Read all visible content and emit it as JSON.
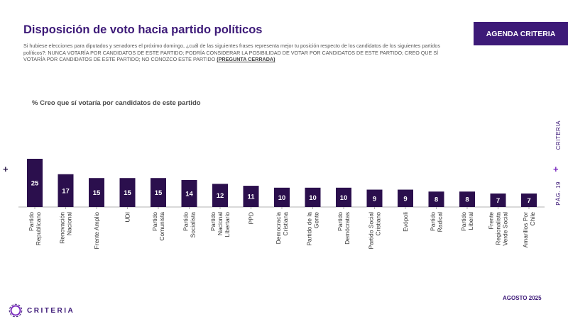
{
  "header": {
    "title": "Disposición de voto hacia partido políticos",
    "question": "Si hubiese elecciones para diputados y senadores el próximo domingo, ¿cuál de las siguientes frases representa mejor tu posición respecto de los candidatos de los siguientes partidos políticos?: NUNCA VOTARÍA POR CANDIDATOS DE ESTE PARTIDO; PODRÍA CONSIDERAR LA POSIBILIDAD DE VOTAR POR CANDIDATOS DE ESTE PARTIDO; CREO QUE SÍ VOTARÍA POR CANDIDATOS DE ESTE PARTIDO; NO CONOZCO ESTE PARTIDO",
    "question_tag": "(PREGUNTA CERRADA)",
    "agenda_label": "AGENDA CRITERIA"
  },
  "side": {
    "brand": "CRITERIA",
    "page": "PÁG. 19",
    "plus": "+"
  },
  "footer": {
    "date": "AGOSTO 2025",
    "logo_text": "CRITERIA"
  },
  "colors": {
    "bar": "#2b0f4d",
    "accent": "#3d1a78",
    "plus": "#7b2cbf"
  },
  "chart_data": {
    "type": "bar",
    "title": "% Creo que sí votaría por candidatos de este partido",
    "xlabel": "",
    "ylabel": "",
    "ylim": [
      0,
      25
    ],
    "grid": false,
    "legend": "none",
    "categories": [
      "Partido Republicano",
      "Renovación Nacional",
      "Frente Amplio",
      "UDI",
      "Partido Comunista",
      "Partido Socialista",
      "Partido Nacional Libertario",
      "PPD",
      "Democracia Cristiana",
      "Partido de la Gente",
      "Partido Demócratas",
      "Partido Social Cristiano",
      "Evópoli",
      "Partido Radical",
      "Partido Liberal",
      "Frente Regionalista Verde Social",
      "Amarillos Por Chile"
    ],
    "values": [
      25,
      17,
      15,
      15,
      15,
      14,
      12,
      11,
      10,
      10,
      10,
      9,
      9,
      8,
      8,
      7,
      7
    ]
  }
}
